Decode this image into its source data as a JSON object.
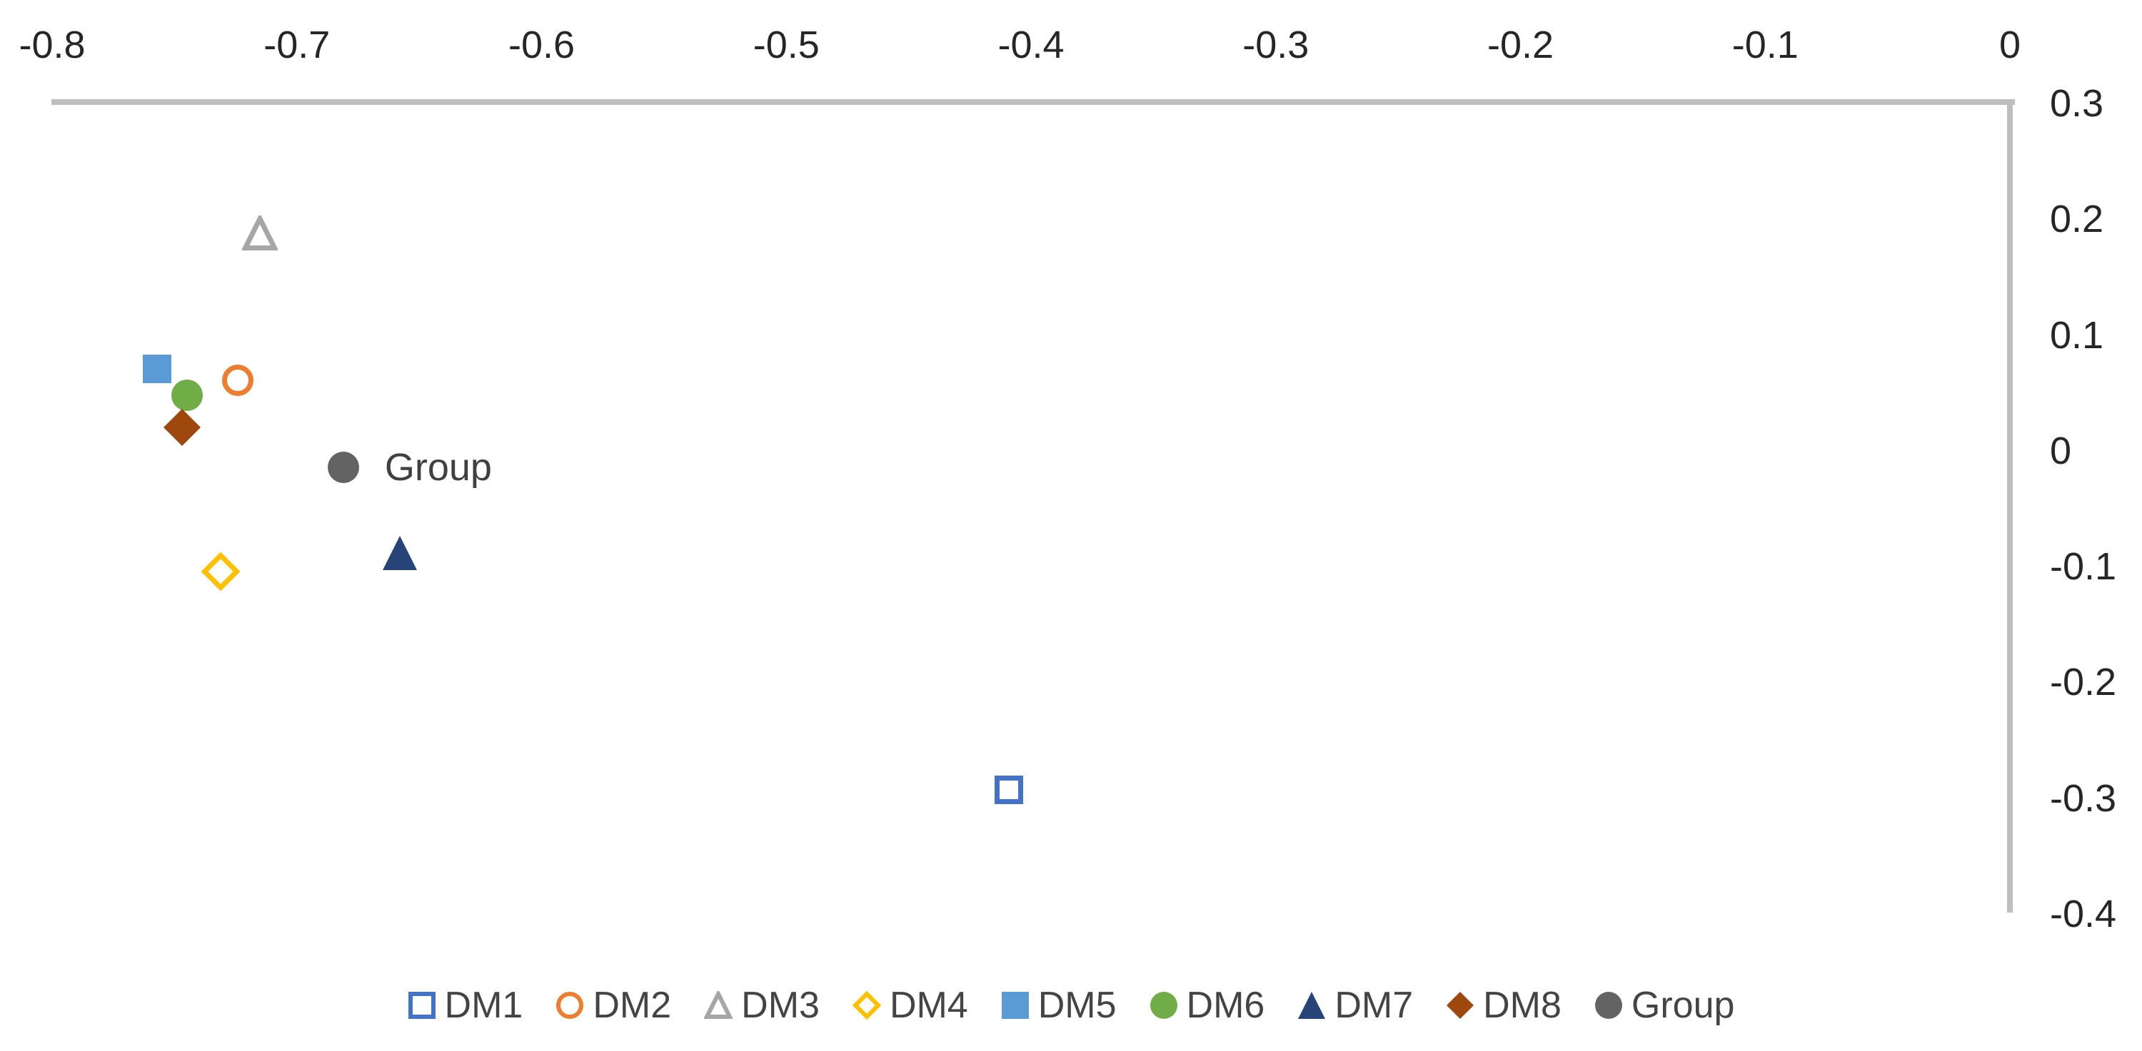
{
  "chart_data": {
    "type": "scatter",
    "title": "",
    "xlabel": "",
    "ylabel": "",
    "grid": false,
    "legend_position": "bottom",
    "x_axis": {
      "position": "top",
      "min": -0.8,
      "max": 0,
      "tick_values": [
        -0.8,
        -0.7,
        -0.6,
        -0.5,
        -0.4,
        -0.3,
        -0.2,
        -0.1,
        0
      ],
      "tick_labels": [
        "-0.8",
        "-0.7",
        "-0.6",
        "-0.5",
        "-0.4",
        "-0.3",
        "-0.2",
        "-0.1",
        "0"
      ]
    },
    "y_axis": {
      "position": "right",
      "min": -0.4,
      "max": 0.3,
      "tick_values": [
        0.3,
        0.2,
        0.1,
        0,
        -0.1,
        -0.2,
        -0.3,
        -0.4
      ],
      "tick_labels": [
        "0.3",
        "0.2",
        "0.1",
        "0",
        "-0.1",
        "-0.2",
        "-0.3",
        "-0.4"
      ]
    },
    "series": [
      {
        "name": "DM1",
        "x": -0.409,
        "y": -0.293,
        "marker": "square",
        "fill": "open",
        "color": "#4472C4"
      },
      {
        "name": "DM2",
        "x": -0.724,
        "y": 0.061,
        "marker": "circle",
        "fill": "open",
        "color": "#ED7D31"
      },
      {
        "name": "DM3",
        "x": -0.715,
        "y": 0.188,
        "marker": "triangle",
        "fill": "open",
        "color": "#A6A6A6"
      },
      {
        "name": "DM4",
        "x": -0.731,
        "y": -0.104,
        "marker": "diamond",
        "fill": "open",
        "color": "#FFC000"
      },
      {
        "name": "DM5",
        "x": -0.757,
        "y": 0.071,
        "marker": "square",
        "fill": "solid",
        "color": "#5B9BD5"
      },
      {
        "name": "DM6",
        "x": -0.745,
        "y": 0.048,
        "marker": "circle",
        "fill": "solid",
        "color": "#70AD47"
      },
      {
        "name": "DM7",
        "x": -0.658,
        "y": -0.088,
        "marker": "triangle",
        "fill": "solid",
        "color": "#264478"
      },
      {
        "name": "DM8",
        "x": -0.747,
        "y": 0.02,
        "marker": "diamond",
        "fill": "solid",
        "color": "#9E480E"
      },
      {
        "name": "Group",
        "x": -0.681,
        "y": -0.014,
        "marker": "circle",
        "fill": "solid",
        "color": "#636363",
        "point_label": "Group"
      }
    ],
    "colors": {
      "axis_line": "#BFBFBF",
      "tick_text": "#262626",
      "legend_text": "#444444",
      "point_label_text": "#404040"
    }
  }
}
